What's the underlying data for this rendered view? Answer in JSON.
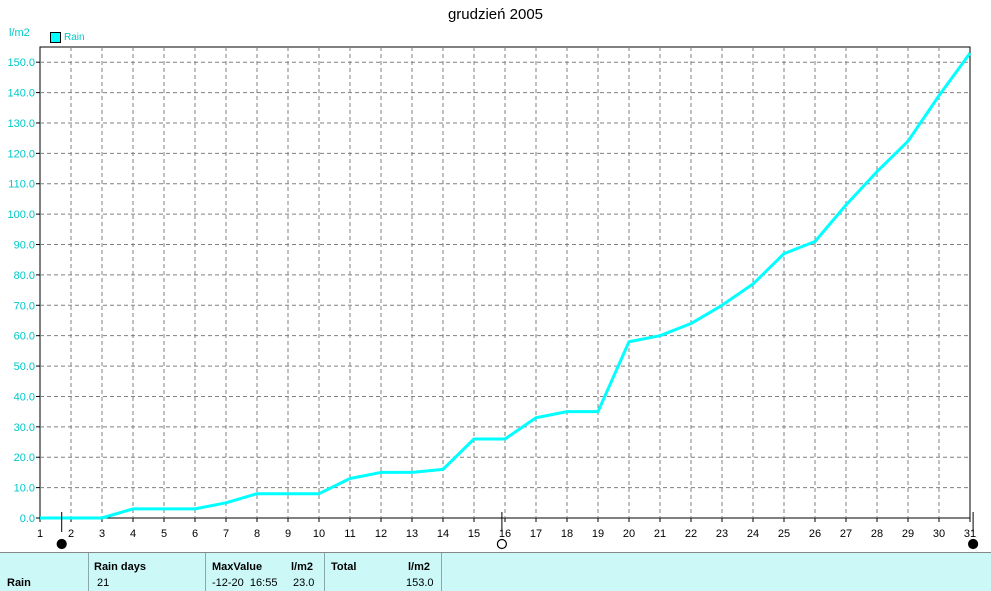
{
  "chart_data": {
    "type": "line",
    "title": "grudzień 2005",
    "unit_label": "l/m2",
    "legend_placement": "top-left",
    "grid": true,
    "x": [
      1,
      2,
      3,
      4,
      5,
      6,
      7,
      8,
      9,
      10,
      11,
      12,
      13,
      14,
      15,
      16,
      17,
      18,
      19,
      20,
      21,
      22,
      23,
      24,
      25,
      26,
      27,
      28,
      29,
      30,
      31
    ],
    "xlim": [
      1,
      31
    ],
    "ylim": [
      0,
      155
    ],
    "yticks": [
      0.0,
      10.0,
      20.0,
      30.0,
      40.0,
      50.0,
      60.0,
      70.0,
      80.0,
      90.0,
      100.0,
      110.0,
      120.0,
      130.0,
      140.0,
      150.0
    ],
    "ytick_labels": [
      "0.0",
      "10.0",
      "20.0",
      "30.0",
      "40.0",
      "50.0",
      "60.0",
      "70.0",
      "80.0",
      "90.0",
      "100.0",
      "110.0",
      "120.0",
      "130.0",
      "140.0",
      "150.0"
    ],
    "series": [
      {
        "name": "Rain",
        "color": "#00ffff",
        "values": [
          0,
          0,
          0,
          3,
          3,
          3,
          5,
          8,
          8,
          8,
          13,
          15,
          15,
          16,
          26,
          26,
          33,
          35,
          35,
          58,
          60,
          64,
          70,
          77,
          87,
          91,
          103,
          114,
          124,
          139,
          153
        ]
      }
    ],
    "moon_phases": [
      {
        "x": 1.7,
        "phase": "new"
      },
      {
        "x": 15.9,
        "phase": "full"
      },
      {
        "x": 31.1,
        "phase": "new"
      }
    ]
  },
  "stats": {
    "row_label": "Rain",
    "rain_days_header": "Rain days",
    "rain_days_value": "21",
    "maxvalue_header": "MaxValue",
    "maxvalue_unit": "l/m2",
    "maxvalue_time": "-12-20  16:55",
    "maxvalue_value": "23.0",
    "total_header": "Total",
    "total_unit": "l/m2",
    "total_value": "153.0"
  }
}
